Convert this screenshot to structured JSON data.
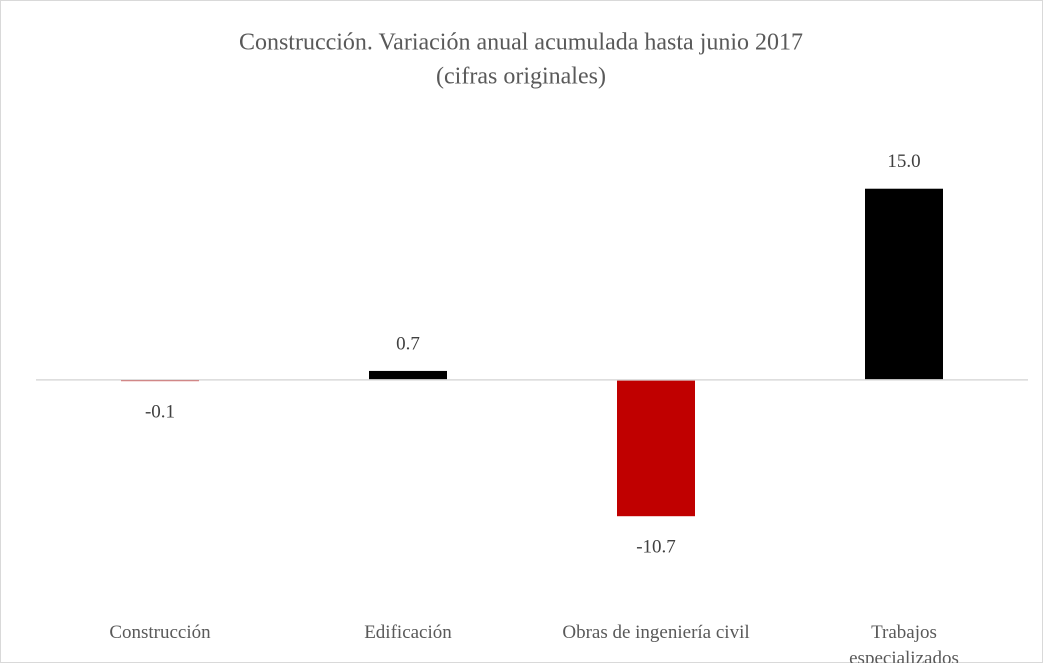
{
  "chart_data": {
    "type": "bar",
    "title": "Construcción. Variación anual acumulada hasta junio 2017",
    "subtitle": "(cifras originales)",
    "categories": [
      "Construcción",
      "Edificación",
      "Obras de ingeniería civil",
      "Trabajos especializados"
    ],
    "values": [
      -0.1,
      0.7,
      -10.7,
      15
    ],
    "value_labels": [
      "-0.1",
      "0.7",
      "-10.7",
      "15.0"
    ],
    "colors": [
      "#c00000",
      "#000000",
      "#c00000",
      "#000000"
    ],
    "ylim": [
      -15,
      20
    ]
  }
}
